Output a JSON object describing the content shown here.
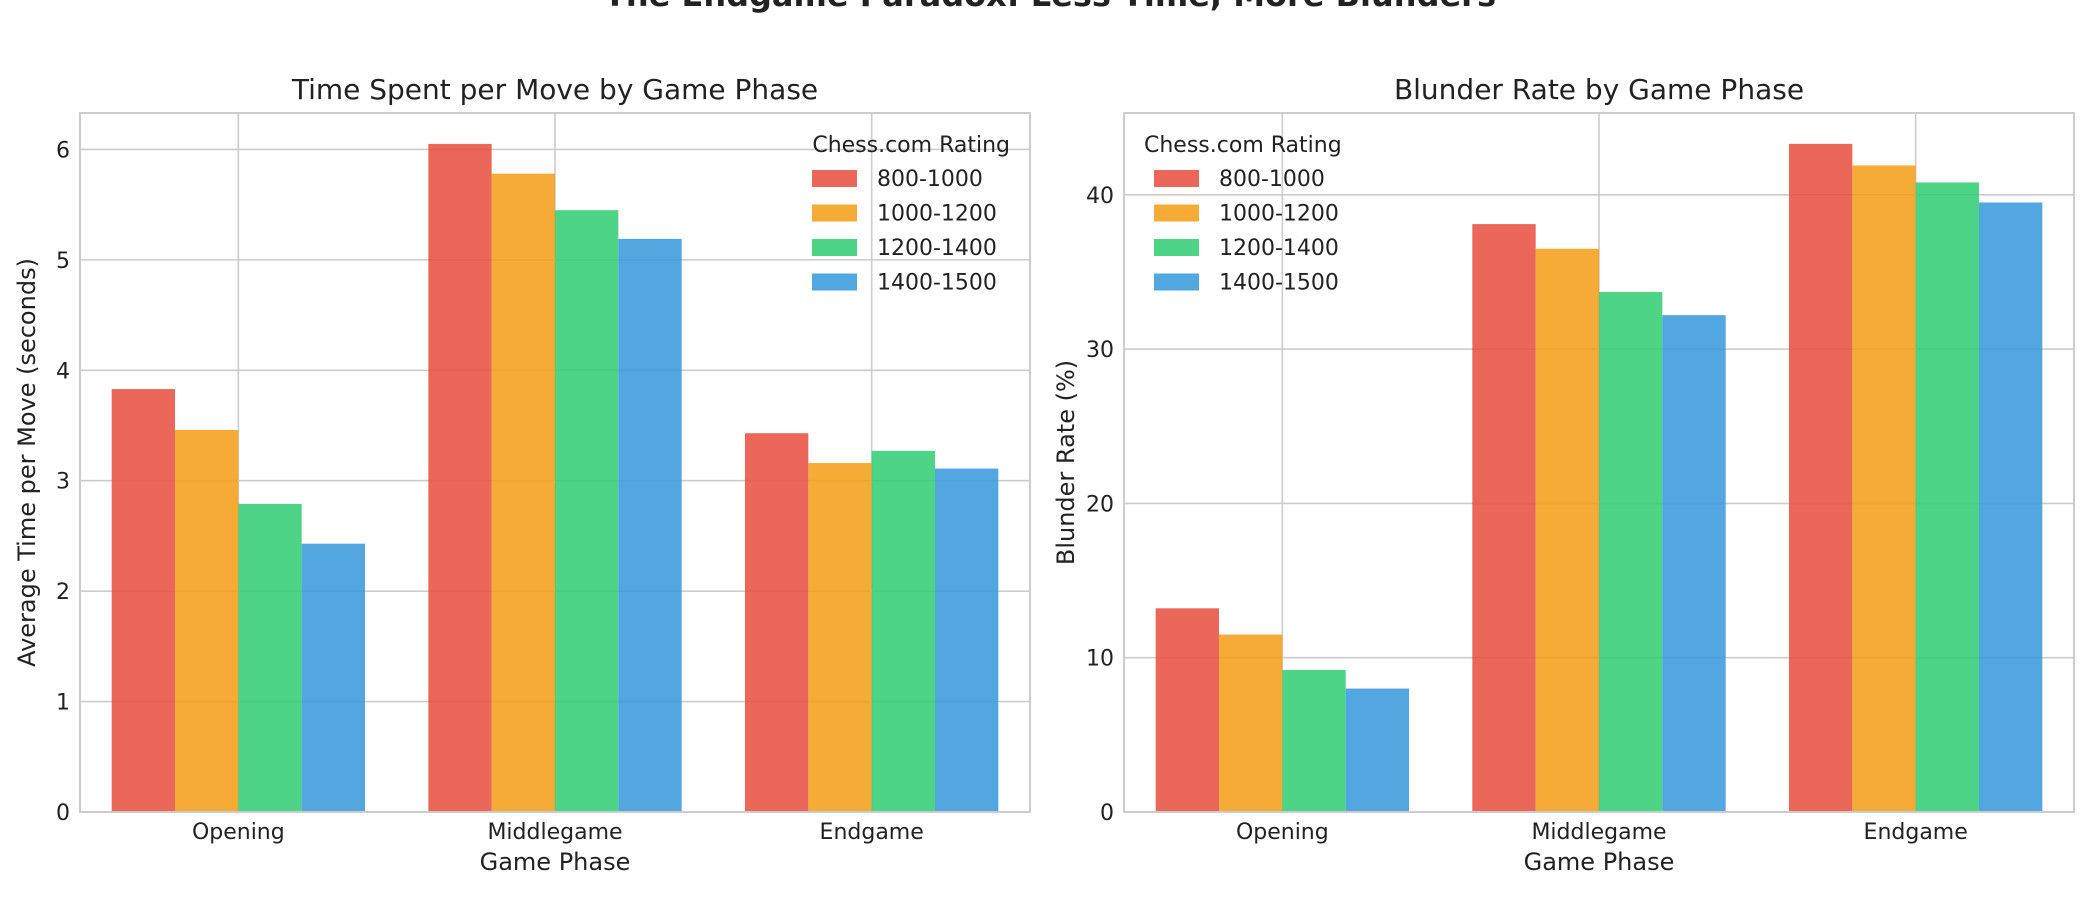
{
  "figure": {
    "suptitle": "The Endgame Paradox: Less Time, More Blunders"
  },
  "colors": [
    "#e74c3c",
    "#f39c12",
    "#2ecc71",
    "#3498db"
  ],
  "chart_data": [
    {
      "type": "bar",
      "title": "Time Spent per Move by Game Phase",
      "xlabel": "Game Phase",
      "ylabel": "Average Time per Move (seconds)",
      "categories": [
        "Opening",
        "Middlegame",
        "Endgame"
      ],
      "ylim": [
        0,
        6.33
      ],
      "yticks": [
        0,
        1,
        2,
        3,
        4,
        5,
        6
      ],
      "grid": true,
      "legend_title": "Chess.com Rating",
      "legend_position": "top-right",
      "series": [
        {
          "name": "800-1000",
          "values": [
            3.83,
            6.05,
            3.43
          ]
        },
        {
          "name": "1000-1200",
          "values": [
            3.46,
            5.78,
            3.16
          ]
        },
        {
          "name": "1200-1400",
          "values": [
            2.79,
            5.45,
            3.27
          ]
        },
        {
          "name": "1400-1500",
          "values": [
            2.43,
            5.19,
            3.11
          ]
        }
      ]
    },
    {
      "type": "bar",
      "title": "Blunder Rate by Game Phase",
      "xlabel": "Game Phase",
      "ylabel": "Blunder Rate (%)",
      "categories": [
        "Opening",
        "Middlegame",
        "Endgame"
      ],
      "ylim": [
        0,
        45.3
      ],
      "yticks": [
        0,
        10,
        20,
        30,
        40
      ],
      "grid": true,
      "legend_title": "Chess.com Rating",
      "legend_position": "top-left",
      "series": [
        {
          "name": "800-1000",
          "values": [
            13.2,
            38.1,
            43.3
          ]
        },
        {
          "name": "1000-1200",
          "values": [
            11.5,
            36.5,
            41.9
          ]
        },
        {
          "name": "1200-1400",
          "values": [
            9.2,
            33.7,
            40.8
          ]
        },
        {
          "name": "1400-1500",
          "values": [
            8.0,
            32.2,
            39.5
          ]
        }
      ]
    }
  ]
}
